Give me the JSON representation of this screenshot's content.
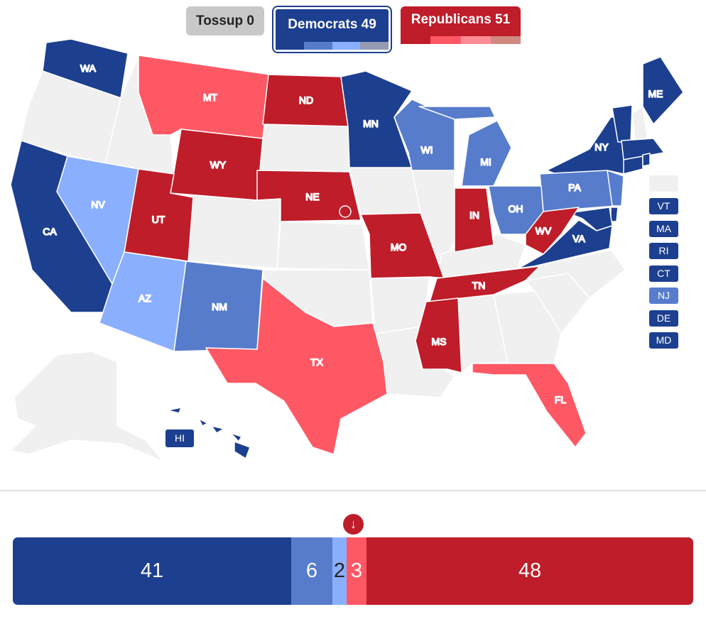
{
  "header": {
    "tossup_label": "Tossup 0",
    "dem_label": "Democrats 49",
    "rep_label": "Republicans 51"
  },
  "colors": {
    "safe_dem": "#1c3f8f",
    "likely_dem": "#577ccc",
    "lean_dem": "#8aaffe",
    "tilt_dem": "#949bb3",
    "safe_rep": "#bf1d29",
    "likely_rep": "#ff5865",
    "lean_rep": "#ff8b98",
    "tilt_rep": "#cf8980",
    "tossup": "#c8c8c8",
    "no_race": "#f0f0f0"
  },
  "states": [
    {
      "abbr": "WA",
      "rating": "safe_dem"
    },
    {
      "abbr": "MT",
      "rating": "likely_rep"
    },
    {
      "abbr": "ND",
      "rating": "safe_rep"
    },
    {
      "abbr": "MN",
      "rating": "safe_dem"
    },
    {
      "abbr": "ME",
      "rating": "safe_dem"
    },
    {
      "abbr": "WY",
      "rating": "safe_rep"
    },
    {
      "abbr": "WI",
      "rating": "likely_dem"
    },
    {
      "abbr": "MI",
      "rating": "likely_dem"
    },
    {
      "abbr": "NY",
      "rating": "safe_dem"
    },
    {
      "abbr": "NV",
      "rating": "lean_dem"
    },
    {
      "abbr": "CA",
      "rating": "safe_dem"
    },
    {
      "abbr": "UT",
      "rating": "safe_rep"
    },
    {
      "abbr": "NE",
      "rating": "safe_rep"
    },
    {
      "abbr": "PA",
      "rating": "likely_dem"
    },
    {
      "abbr": "IN",
      "rating": "safe_rep"
    },
    {
      "abbr": "OH",
      "rating": "likely_dem"
    },
    {
      "abbr": "WV",
      "rating": "safe_rep"
    },
    {
      "abbr": "MO",
      "rating": "safe_rep"
    },
    {
      "abbr": "VA",
      "rating": "safe_dem"
    },
    {
      "abbr": "AZ",
      "rating": "lean_dem"
    },
    {
      "abbr": "NM",
      "rating": "likely_dem"
    },
    {
      "abbr": "TN",
      "rating": "safe_rep"
    },
    {
      "abbr": "TX",
      "rating": "likely_rep"
    },
    {
      "abbr": "MS",
      "rating": "safe_rep"
    },
    {
      "abbr": "FL",
      "rating": "likely_rep"
    },
    {
      "abbr": "HI",
      "rating": "safe_dem"
    }
  ],
  "small_states": [
    {
      "abbr": "VT",
      "rating": "safe_dem"
    },
    {
      "abbr": "MA",
      "rating": "safe_dem"
    },
    {
      "abbr": "RI",
      "rating": "safe_dem"
    },
    {
      "abbr": "CT",
      "rating": "safe_dem"
    },
    {
      "abbr": "NJ",
      "rating": "likely_dem"
    },
    {
      "abbr": "DE",
      "rating": "safe_dem"
    },
    {
      "abbr": "MD",
      "rating": "safe_dem"
    }
  ],
  "seat_bar": [
    {
      "count": "41",
      "rating": "safe_dem"
    },
    {
      "count": "6",
      "rating": "likely_dem"
    },
    {
      "count": "2",
      "rating": "lean_dem"
    },
    {
      "count": "3",
      "rating": "likely_rep"
    },
    {
      "count": "48",
      "rating": "safe_rep"
    }
  ]
}
